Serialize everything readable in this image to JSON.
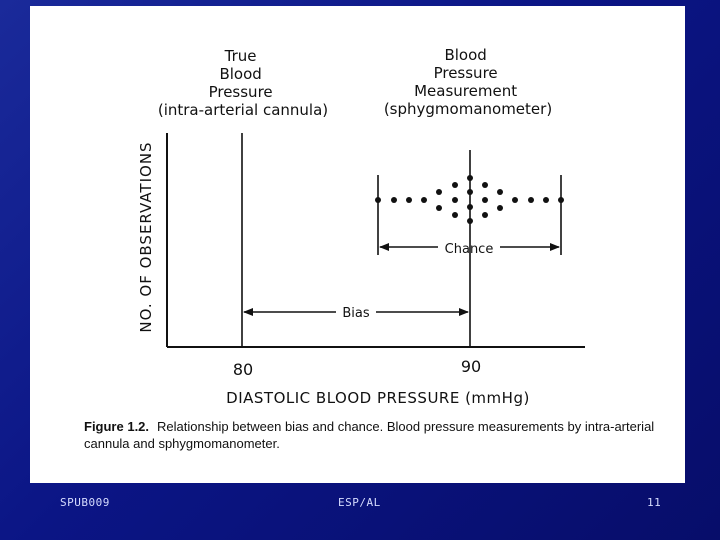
{
  "figure": {
    "true_bp_label": [
      "True",
      "Blood",
      "Pressure",
      "(intra-arterial cannula)"
    ],
    "measured_bp_label": [
      "Blood",
      "Pressure",
      "Measurement",
      "(sphygmomanometer)"
    ],
    "y_axis_label": "NO. OF OBSERVATIONS",
    "x_axis_label": "DIASTOLIC BLOOD PRESSURE (mmHg)",
    "tick_80": "80",
    "tick_90": "90",
    "chance_label": "Chance",
    "bias_label": "Bias"
  },
  "caption": {
    "figure_number": "Figure 1.2.",
    "text": "Relationship between bias and chance. Blood pressure measurements by intra-arterial cannula and sphygmomanometer."
  },
  "footer": {
    "left": "SPUB009",
    "center": "ESP/AL",
    "right": "11"
  }
}
